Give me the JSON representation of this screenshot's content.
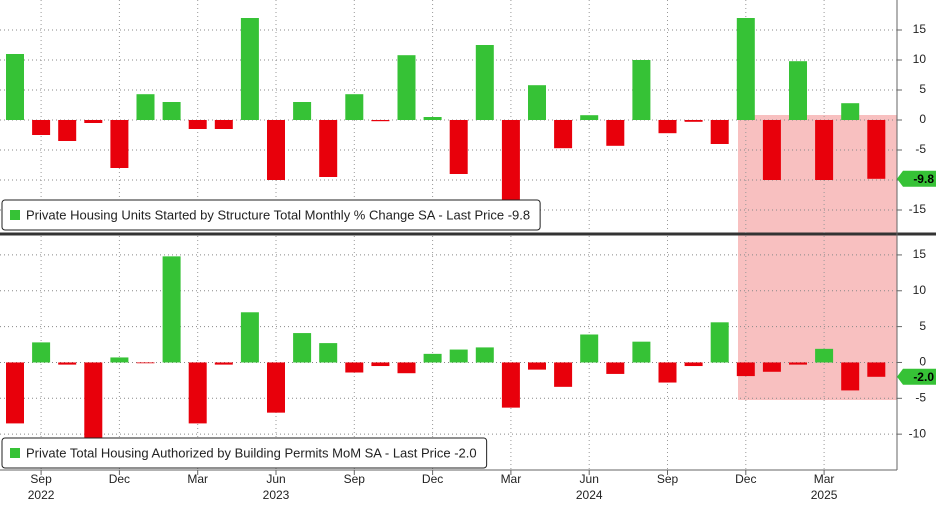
{
  "x_axis": {
    "categories": [
      null,
      "Sep",
      null,
      null,
      "Dec",
      null,
      null,
      "Mar",
      null,
      null,
      "Jun",
      null,
      null,
      "Sep",
      null,
      null,
      "Dec",
      null,
      null,
      "Mar",
      null,
      null,
      "Jun",
      null,
      null,
      "Sep",
      null,
      null,
      "Dec",
      null,
      null,
      "Mar",
      null,
      null
    ],
    "year_labels": [
      null,
      "2022",
      null,
      null,
      null,
      null,
      null,
      null,
      null,
      null,
      "2023",
      null,
      null,
      null,
      null,
      null,
      null,
      null,
      null,
      null,
      null,
      null,
      "2024",
      null,
      null,
      null,
      null,
      null,
      null,
      null,
      null,
      "2025",
      null,
      null
    ]
  },
  "chart_data": [
    {
      "type": "bar",
      "legend": "Private Housing Units Started by Structure Total Monthly % Change SA - Last Price -9.8",
      "values": [
        11,
        -2.5,
        -3.5,
        -0.5,
        -8,
        4.3,
        3,
        -1.5,
        -1.5,
        17,
        -10,
        3,
        -9.5,
        4.3,
        -0.2,
        10.8,
        0.5,
        -9,
        12.5,
        -14,
        5.8,
        -4.7,
        0.8,
        -4.3,
        10,
        -2.2,
        -0.3,
        -4,
        17,
        -10,
        9.8,
        -10,
        2.8,
        -9.8
      ],
      "ylim": [
        -18.5,
        20
      ],
      "yticks": [
        -15,
        -10,
        -5,
        0,
        5,
        10,
        15
      ],
      "colors": {
        "positive": "#36c236",
        "negative": "#e8000b"
      },
      "grid": true
    },
    {
      "type": "bar",
      "legend": "Private Total Housing Authorized by Building Permits MoM SA - Last Price -2.0",
      "values": [
        -8.5,
        2.8,
        -0.3,
        -10.5,
        0.7,
        -0.1,
        14.8,
        -8.5,
        -0.3,
        7,
        -7,
        4.1,
        2.7,
        -1.4,
        -0.5,
        -1.5,
        1.2,
        1.8,
        2.1,
        -6.3,
        -1,
        -3.4,
        3.9,
        -1.6,
        2.9,
        -2.8,
        -0.5,
        5.6,
        -1.9,
        -1.3,
        -0.3,
        1.9,
        -3.9,
        -2
      ],
      "value_labels": [
        null,
        null,
        null,
        null,
        null,
        null,
        null,
        null,
        null,
        null,
        null,
        null,
        null,
        null,
        null,
        null,
        null,
        null,
        null,
        null,
        null,
        null,
        null,
        null,
        null,
        null,
        null,
        null,
        null,
        null,
        null,
        null,
        null,
        "-2.0"
      ],
      "ylim": [
        -15,
        17.5
      ],
      "yticks": [
        -10,
        -5,
        0,
        5,
        10,
        15
      ],
      "colors": {
        "positive": "#36c236",
        "negative": "#e8000b"
      },
      "grid": true
    }
  ]
}
